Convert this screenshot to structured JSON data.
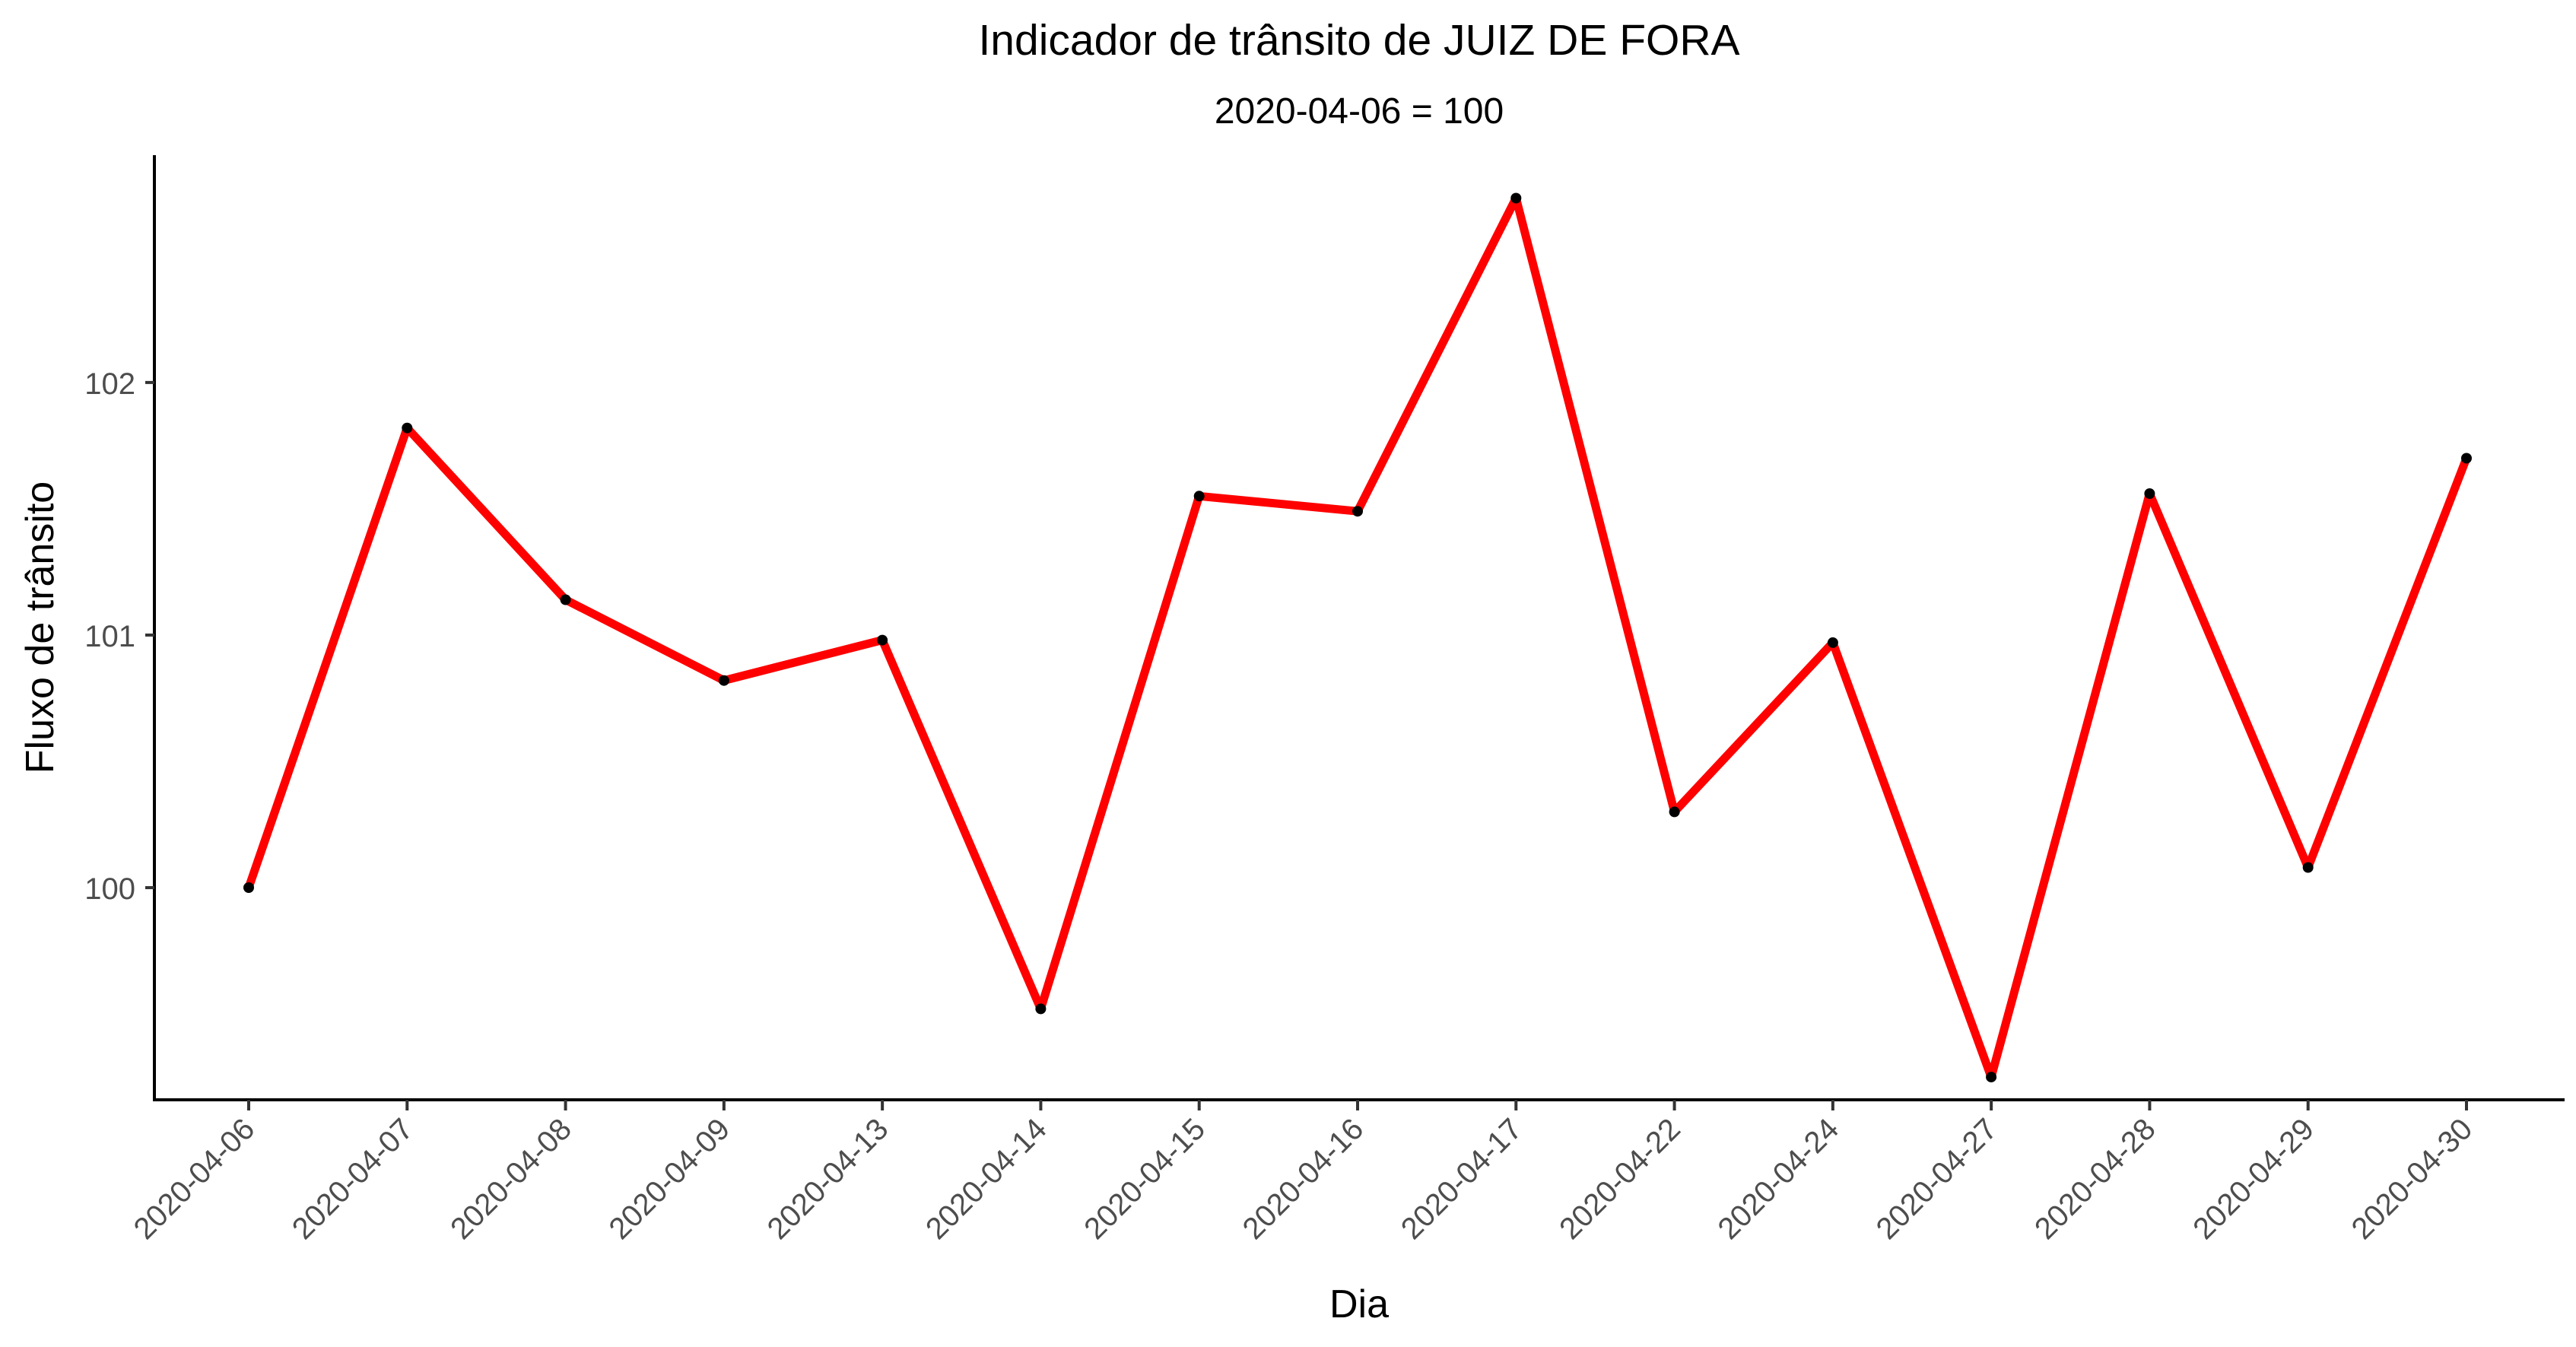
{
  "chart_data": {
    "type": "line",
    "title": "Indicador de trânsito de JUIZ DE FORA",
    "subtitle": "2020-04-06 = 100",
    "xlabel": "Dia",
    "ylabel": "Fluxo de trânsito",
    "categories": [
      "2020-04-06",
      "2020-04-07",
      "2020-04-08",
      "2020-04-09",
      "2020-04-13",
      "2020-04-14",
      "2020-04-15",
      "2020-04-16",
      "2020-04-17",
      "2020-04-22",
      "2020-04-24",
      "2020-04-27",
      "2020-04-28",
      "2020-04-29",
      "2020-04-30"
    ],
    "series": [
      {
        "values": [
          100.0,
          101.82,
          101.14,
          100.82,
          100.98,
          99.52,
          101.55,
          101.49,
          102.73,
          100.3,
          100.97,
          99.25,
          101.56,
          100.08,
          101.7
        ],
        "line_color": "#ff0000",
        "point_color": "#000000"
      }
    ],
    "yticks": [
      100,
      101,
      102
    ],
    "ylim": [
      99.16,
      102.9
    ],
    "grid": false,
    "legend": "none"
  }
}
